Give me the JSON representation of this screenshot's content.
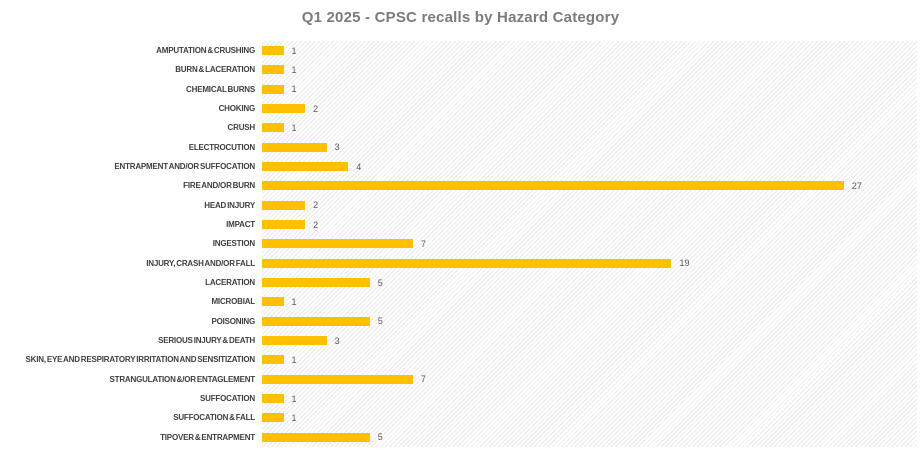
{
  "chart_data": {
    "type": "bar",
    "orientation": "horizontal",
    "title": "Q1 2025 - CPSC recalls by Hazard Category",
    "categories": [
      "AMPUTATION & CRUSHING",
      "BURN & LACERATION",
      "CHEMICAL BURNS",
      "CHOKING",
      "CRUSH",
      "ELECTROCUTION",
      "ENTRAPMENT AND/OR SUFFOCATION",
      "FIRE AND/OR BURN",
      "HEAD INJURY",
      "IMPACT",
      "INGESTION",
      "INJURY, CRASH AND/OR FALL",
      "LACERATION",
      "MICROBIAL",
      "POISONING",
      "SERIOUS INJURY & DEATH",
      "SKIN, EYE AND RESPIRATORY IRRITATION AND SENSITIZATION",
      "STRANGULATION &/OR ENTAGLEMENT",
      "SUFFOCATION",
      "SUFFOCATION & FALL",
      "TIPOVER & ENTRAPMENT"
    ],
    "values": [
      1,
      1,
      1,
      2,
      1,
      3,
      4,
      27,
      2,
      2,
      7,
      19,
      5,
      1,
      5,
      3,
      1,
      7,
      1,
      1,
      5
    ],
    "xlim": [
      0,
      30
    ],
    "grid": false,
    "axis_labels_shown": false,
    "data_labels": true,
    "legend": null,
    "plot_background": "light diagonal hatch",
    "colors": {
      "bar": "#FFC000",
      "title": "#7B7B7B",
      "category_label": "#3F3F3F",
      "value_label": "#595959",
      "hatch": "#EBEBEB",
      "background": "#FFFFFF"
    }
  }
}
